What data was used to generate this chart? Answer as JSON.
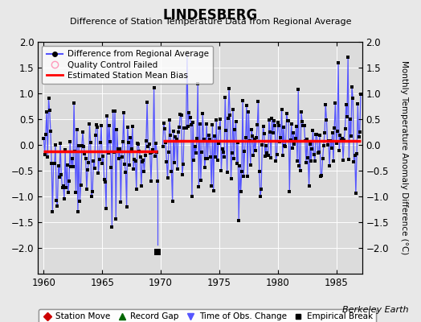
{
  "title": "LINDESBERG",
  "subtitle": "Difference of Station Temperature Data from Regional Average",
  "ylabel": "Monthly Temperature Anomaly Difference (°C)",
  "xlabel_note": "Berkeley Earth",
  "ylim": [
    -2.5,
    2.0
  ],
  "yticks": [
    -2.0,
    -1.5,
    -1.0,
    -0.5,
    0.0,
    0.5,
    1.0,
    1.5,
    2.0
  ],
  "xlim": [
    1959.5,
    1987.2
  ],
  "xticks": [
    1960,
    1965,
    1970,
    1975,
    1980,
    1985
  ],
  "bg_color": "#e8e8e8",
  "plot_bg_color": "#dcdcdc",
  "line_color": "#5555ff",
  "marker_color": "#000000",
  "bias_color": "#ff0000",
  "bias1": -0.12,
  "bias2": 0.08,
  "break_x": 1969.75,
  "break_y": -2.08,
  "seed": 42
}
